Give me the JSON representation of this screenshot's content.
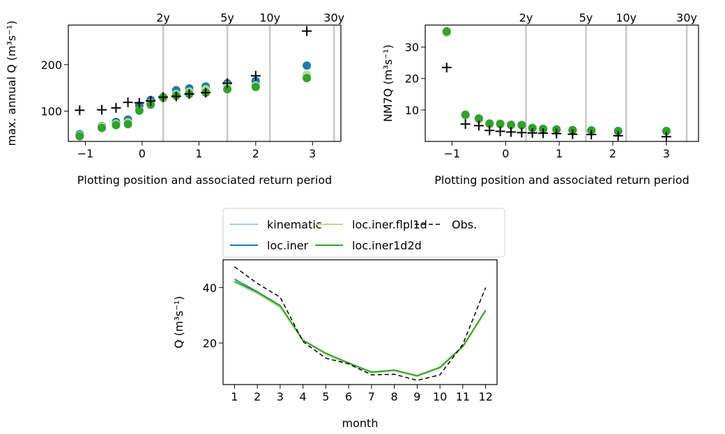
{
  "chart_data": [
    {
      "type": "scatter",
      "title": "",
      "xlabel": "Plotting position and associated return period",
      "ylabel": "max. annual Q (m³s⁻¹)",
      "xlim": [
        -1.3,
        3.5
      ],
      "ylim": [
        35,
        285
      ],
      "xticks": [
        -1,
        0,
        1,
        2,
        3
      ],
      "xtick_labels": [
        "−1",
        "0",
        "1",
        "2",
        "3"
      ],
      "yticks": [
        100,
        200
      ],
      "ytick_labels": [
        "100",
        "200"
      ],
      "return_periods": [
        {
          "label": "2y",
          "x": 0.37
        },
        {
          "label": "5y",
          "x": 1.5
        },
        {
          "label": "10y",
          "x": 2.25
        },
        {
          "label": "30y",
          "x": 3.38
        }
      ],
      "x": [
        -1.1,
        -0.71,
        -0.46,
        -0.25,
        -0.05,
        0.15,
        0.37,
        0.6,
        0.83,
        1.12,
        1.5,
        2.0,
        2.9
      ],
      "series": [
        {
          "name": "kinematic",
          "marker": "circle",
          "color": "#a6cee3",
          "values": [
            51,
            68,
            73,
            76,
            103,
            118,
            128,
            138,
            143,
            148,
            156,
            158,
            178
          ]
        },
        {
          "name": "loc.iner",
          "marker": "circle",
          "color": "#1f78b4",
          "values": [
            50,
            68,
            77,
            82,
            112,
            124,
            130,
            145,
            149,
            153,
            160,
            165,
            198
          ]
        },
        {
          "name": "loc.iner.flpl1d",
          "marker": "circle",
          "color": "#b2df8a",
          "values": [
            48,
            67,
            73,
            76,
            102,
            117,
            127,
            137,
            142,
            147,
            155,
            155,
            178
          ]
        },
        {
          "name": "loc.iner1d2d",
          "marker": "circle",
          "color": "#33a02c",
          "values": [
            46,
            64,
            70,
            72,
            101,
            114,
            130,
            133,
            137,
            140,
            147,
            152,
            171
          ]
        },
        {
          "name": "Obs.",
          "marker": "plus",
          "color": "#000000",
          "values": [
            102,
            103,
            107,
            119,
            118,
            122,
            130,
            132,
            137,
            140,
            160,
            176,
            272
          ]
        }
      ]
    },
    {
      "type": "scatter",
      "title": "",
      "xlabel": "Plotting position and associated return period",
      "ylabel": "NM7Q (m³s⁻¹)",
      "xlim": [
        -1.5,
        3.6
      ],
      "ylim": [
        0,
        37
      ],
      "xticks": [
        -1,
        0,
        1,
        2,
        3
      ],
      "xtick_labels": [
        "−1",
        "0",
        "1",
        "2",
        "3"
      ],
      "yticks": [
        10,
        20,
        30
      ],
      "ytick_labels": [
        "10",
        "20",
        "30"
      ],
      "return_periods": [
        {
          "label": "2y",
          "x": 0.38
        },
        {
          "label": "5y",
          "x": 1.5
        },
        {
          "label": "10y",
          "x": 2.25
        },
        {
          "label": "30y",
          "x": 3.38
        }
      ],
      "x": [
        -1.1,
        -0.75,
        -0.5,
        -0.3,
        -0.1,
        0.1,
        0.3,
        0.5,
        0.7,
        0.95,
        1.25,
        1.6,
        2.1,
        3.0
      ],
      "series": [
        {
          "name": "kinematic",
          "marker": "circle",
          "color": "#a6cee3",
          "values": [
            34.5,
            8.3,
            7.1,
            5.5,
            5.4,
            5.1,
            5.1,
            4.1,
            3.9,
            3.7,
            3.5,
            3.4,
            3.2,
            3.2
          ]
        },
        {
          "name": "loc.iner",
          "marker": "circle",
          "color": "#1f78b4",
          "values": [
            34.8,
            8.4,
            7.2,
            5.6,
            5.5,
            5.2,
            5.2,
            4.2,
            4.0,
            3.8,
            3.6,
            3.5,
            3.3,
            3.3
          ]
        },
        {
          "name": "loc.iner.flpl1d",
          "marker": "circle",
          "color": "#b2df8a",
          "values": [
            34.6,
            8.3,
            7.1,
            5.5,
            5.4,
            5.1,
            5.1,
            4.1,
            3.9,
            3.7,
            3.5,
            3.4,
            3.2,
            3.2
          ]
        },
        {
          "name": "loc.iner1d2d",
          "marker": "circle",
          "color": "#33a02c",
          "values": [
            35.0,
            8.5,
            7.3,
            5.7,
            5.6,
            5.3,
            5.2,
            4.3,
            4.0,
            3.8,
            3.6,
            3.5,
            3.3,
            3.3
          ]
        },
        {
          "name": "Obs.",
          "marker": "plus",
          "color": "#000000",
          "values": [
            23.5,
            5.5,
            5.0,
            3.5,
            3.2,
            3.0,
            2.8,
            2.7,
            2.6,
            2.5,
            2.3,
            2.2,
            1.8,
            1.5
          ]
        }
      ]
    },
    {
      "type": "line",
      "title": "",
      "xlabel": "month",
      "ylabel": "Q (m³s⁻¹)",
      "xlim": [
        0.5,
        12.5
      ],
      "ylim": [
        5,
        50
      ],
      "xticks": [
        1,
        2,
        3,
        4,
        5,
        6,
        7,
        8,
        9,
        10,
        11,
        12
      ],
      "xtick_labels": [
        "1",
        "2",
        "3",
        "4",
        "5",
        "6",
        "7",
        "8",
        "9",
        "10",
        "11",
        "12"
      ],
      "yticks": [
        20,
        40
      ],
      "ytick_labels": [
        "20",
        "40"
      ],
      "x": [
        1,
        2,
        3,
        4,
        5,
        6,
        7,
        8,
        9,
        10,
        11,
        12
      ],
      "legend_position": "above",
      "series": [
        {
          "name": "kinematic",
          "style": "solid",
          "color": "#a6cee3",
          "values": [
            42.0,
            38.0,
            33.0,
            21.0,
            16.0,
            12.5,
            9.2,
            10.0,
            8.0,
            11.0,
            18.5,
            31.5
          ]
        },
        {
          "name": "loc.iner",
          "style": "solid",
          "color": "#1f78b4",
          "values": [
            42.2,
            38.2,
            33.2,
            21.0,
            16.0,
            12.6,
            9.3,
            10.1,
            8.1,
            11.1,
            18.6,
            31.6
          ]
        },
        {
          "name": "loc.iner.flpl1d",
          "style": "solid",
          "color": "#b2df8a",
          "values": [
            41.8,
            37.8,
            32.8,
            21.0,
            15.9,
            12.4,
            9.2,
            10.0,
            8.0,
            10.9,
            18.4,
            31.4
          ]
        },
        {
          "name": "loc.iner1d2d",
          "style": "solid",
          "color": "#33a02c",
          "values": [
            43.0,
            38.5,
            33.5,
            21.0,
            16.3,
            12.8,
            9.5,
            10.2,
            8.2,
            11.2,
            18.8,
            31.8
          ]
        },
        {
          "name": "Obs.",
          "style": "dashed",
          "color": "#000000",
          "values": [
            47.5,
            41.5,
            36.5,
            20.5,
            14.5,
            12.5,
            8.5,
            8.7,
            6.5,
            8.5,
            19.5,
            40.0
          ]
        }
      ]
    }
  ]
}
